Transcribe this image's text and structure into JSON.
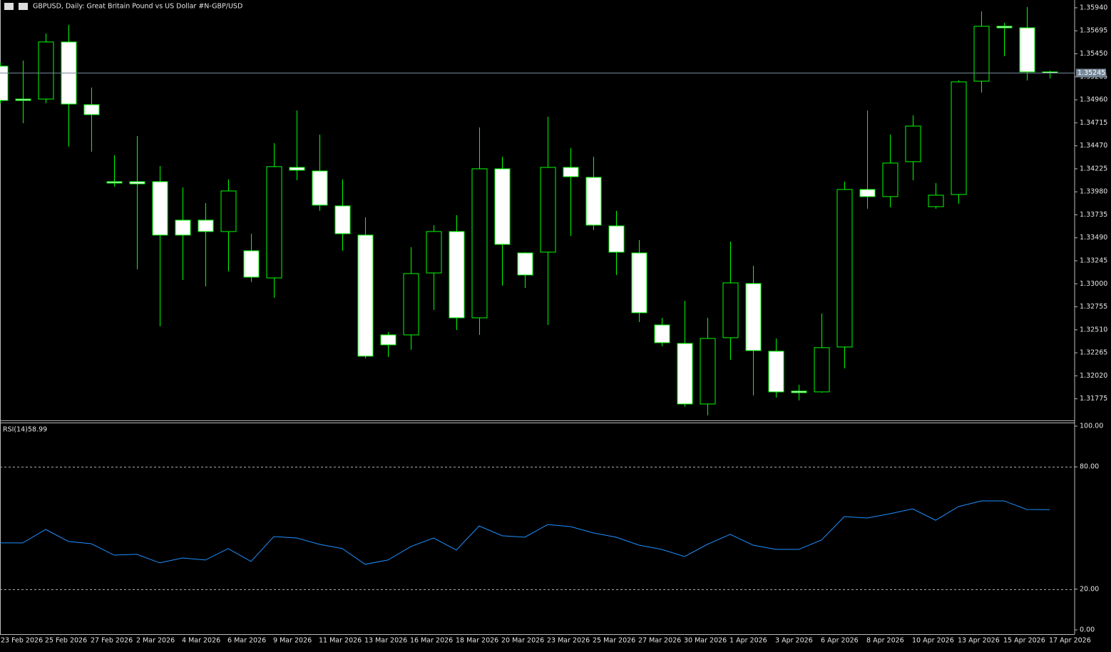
{
  "chart_data": [
    {
      "type": "candlestick",
      "title": "GBPUSD, Daily:  Great Britain Pound vs US Dollar #N-GBP/USD",
      "categories": [
        "23 Feb 2026",
        null,
        "25 Feb 2026",
        null,
        "27 Feb 2026",
        null,
        "2 Mar 2026",
        null,
        "4 Mar 2026",
        null,
        "6 Mar 2026",
        null,
        "9 Mar 2026",
        null,
        "11 Mar 2026",
        null,
        "13 Mar 2026",
        null,
        "16 Mar 2026",
        null,
        "18 Mar 2026",
        null,
        "20 Mar 2026",
        null,
        "23 Mar 2026",
        null,
        "25 Mar 2026",
        null,
        "27 Mar 2026",
        null,
        "30 Mar 2026",
        null,
        "1 Apr 2026",
        null,
        "3 Apr 2026",
        null,
        "6 Apr 2026",
        null,
        "8 Apr 2026",
        null,
        "10 Apr 2026",
        null,
        "13 Apr 2026",
        null,
        "15 Apr 2026",
        null,
        "17 Apr 2026"
      ],
      "open": [
        1.35318,
        1.34968,
        1.34968,
        1.35576,
        1.34908,
        1.34088,
        1.34088,
        1.34088,
        1.33678,
        1.33678,
        1.33557,
        1.33352,
        1.33063,
        1.3424,
        1.34202,
        1.3383,
        1.33519,
        1.32456,
        1.32456,
        1.33116,
        1.33557,
        1.32638,
        1.34225,
        1.33329,
        1.33337,
        1.3424,
        1.34134,
        1.33617,
        1.33329,
        1.32562,
        1.32365,
        1.3172,
        1.32426,
        1.33003,
        1.32282,
        1.31857,
        1.31849,
        1.32327,
        1.34005,
        1.33929,
        1.34301,
        1.33822,
        1.33951,
        1.35158,
        1.35743,
        1.35727,
        1.35257
      ],
      "high": [
        1.35356,
        1.35378,
        1.35667,
        1.35758,
        1.3509,
        1.34369,
        1.34574,
        1.34255,
        1.34027,
        1.3386,
        1.34111,
        1.33534,
        1.34498,
        1.34847,
        1.34589,
        1.34111,
        1.33709,
        1.32486,
        1.3339,
        1.33625,
        1.33731,
        1.34665,
        1.34354,
        1.33337,
        1.34779,
        1.34445,
        1.34354,
        1.33777,
        1.33466,
        1.32638,
        1.3282,
        1.32638,
        1.3345,
        1.33192,
        1.32418,
        1.31925,
        1.32684,
        1.34088,
        1.34847,
        1.34589,
        1.34794,
        1.34073,
        1.35166,
        1.35902,
        1.35781,
        1.35948,
        1.35272
      ],
      "low": [
        1.34923,
        1.3471,
        1.34923,
        1.3446,
        1.34407,
        1.34035,
        1.33154,
        1.32547,
        1.33041,
        1.32972,
        1.33132,
        1.33018,
        1.32851,
        1.34104,
        1.33777,
        1.33352,
        1.32206,
        1.32221,
        1.32297,
        1.32722,
        1.32509,
        1.32456,
        1.3298,
        1.32957,
        1.32562,
        1.33511,
        1.33572,
        1.33094,
        1.32592,
        1.32335,
        1.3169,
        1.31599,
        1.32191,
        1.31811,
        1.31788,
        1.31758,
        1.31841,
        1.32099,
        1.338,
        1.33815,
        1.34104,
        1.338,
        1.33853,
        1.35037,
        1.35424,
        1.35166,
        1.35189
      ],
      "close": [
        1.34953,
        1.34953,
        1.35576,
        1.34915,
        1.34802,
        1.34073,
        1.34065,
        1.33519,
        1.33519,
        1.33557,
        1.33989,
        1.33071,
        1.34248,
        1.3421,
        1.33838,
        1.33534,
        1.32229,
        1.3235,
        1.33109,
        1.33557,
        1.32638,
        1.34225,
        1.3342,
        1.33094,
        1.3424,
        1.34141,
        1.33625,
        1.33337,
        1.32692,
        1.32373,
        1.3172,
        1.32418,
        1.3301,
        1.32289,
        1.31849,
        1.31841,
        1.3232,
        1.34005,
        1.33929,
        1.34286,
        1.3468,
        1.33944,
        1.35151,
        1.35743,
        1.35727,
        1.35257,
        1.35245
      ],
      "ylim": [
        1.31545,
        1.36023
      ],
      "yticks": [
        {
          "value": 1.3594,
          "label": "1.35940"
        },
        1.35695,
        {
          "value": 1.3545,
          "label": "1.35450"
        },
        1.35205,
        {
          "value": 1.3496,
          "label": "1.34960"
        },
        1.34715,
        {
          "value": 1.3447,
          "label": "1.34470"
        },
        1.34225,
        {
          "value": 1.3398,
          "label": "1.33980"
        },
        1.33735,
        {
          "value": 1.3349,
          "label": "1.33490"
        },
        1.33245,
        {
          "value": 1.33,
          "label": "1.33000"
        },
        1.32755,
        {
          "value": 1.3251,
          "label": "1.32510"
        },
        1.32265,
        {
          "value": 1.3202,
          "label": "1.32020"
        },
        1.31775
      ],
      "bull_color": "#000000",
      "bear_color": "#ffffff",
      "wick_color": "#00ff00",
      "last_price": 1.35245,
      "last_price_color": "#778899"
    },
    {
      "type": "line",
      "title": "RSI(14)",
      "color": "#1e90ff",
      "values": [
        42.7,
        42.7,
        49.3,
        43.4,
        42.3,
        36.7,
        37.1,
        32.9,
        35.3,
        34.3,
        39.9,
        33.6,
        45.8,
        45.1,
        42.0,
        39.9,
        32.2,
        34.3,
        40.9,
        45.1,
        39.2,
        51.0,
        46.2,
        45.5,
        51.7,
        50.7,
        47.6,
        45.5,
        41.6,
        39.5,
        36.0,
        42.0,
        46.9,
        41.6,
        39.5,
        39.5,
        44.1,
        55.6,
        54.9,
        57.0,
        59.4,
        53.8,
        60.5,
        63.3,
        63.3,
        59.1,
        58.99
      ],
      "ylim": [
        0,
        100
      ],
      "yticks": [
        {
          "value": 100,
          "label": "100.00"
        },
        {
          "value": 80,
          "label": "80.00"
        },
        {
          "value": 20,
          "label": "20.00"
        },
        {
          "value": 0,
          "label": "0.00"
        }
      ],
      "levels": [
        80,
        20
      ]
    }
  ]
}
